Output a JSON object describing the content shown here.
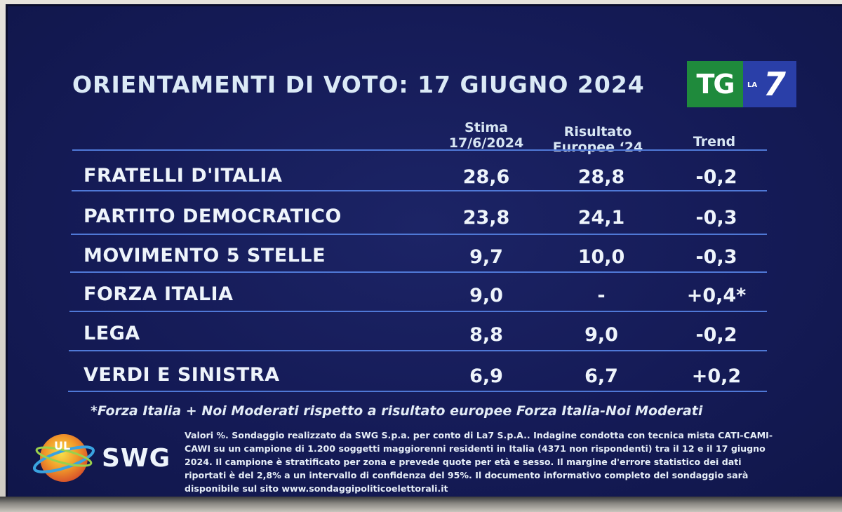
{
  "title": "ORIENTAMENTI DI VOTO: 17 GIUGNO 2024",
  "logo": {
    "left": "TG",
    "small": "LA",
    "right": "7"
  },
  "columns": {
    "estimate_line1": "Stima",
    "estimate_line2": "17/6/2024",
    "result_line1": "Risultato",
    "result_line2": "Europee ‘24",
    "trend": "Trend"
  },
  "rows": [
    {
      "party": "FRATELLI D'ITALIA",
      "estimate": "28,6",
      "result": "28,8",
      "trend": "-0,2"
    },
    {
      "party": "PARTITO DEMOCRATICO",
      "estimate": "23,8",
      "result": "24,1",
      "trend": "-0,3"
    },
    {
      "party": "MOVIMENTO 5 STELLE",
      "estimate": "9,7",
      "result": "10,0",
      "trend": "-0,3"
    },
    {
      "party": "FORZA ITALIA",
      "estimate": "9,0",
      "result": "-",
      "trend": "+0,4*"
    },
    {
      "party": "LEGA",
      "estimate": "8,8",
      "result": "9,0",
      "trend": "-0,2"
    },
    {
      "party": "VERDI E SINISTRA",
      "estimate": "6,9",
      "result": "6,7",
      "trend": "+0,2"
    }
  ],
  "footnote": "*Forza Italia + Noi Moderati rispetto a risultato europee Forza Italia-Noi Moderati",
  "swg": {
    "logo_letters": "UL",
    "name": "SWG"
  },
  "methodology": "Valori %. Sondaggio realizzato da SWG S.p.a. per conto di La7 S.p.A.. Indagine condotta con tecnica mista CATI-CAMI-CAWI su un campione di 1.200 soggetti maggiorenni residenti in Italia (4371 non rispondenti) tra il 12 e il 17 giugno 2024. Il campione è stratificato per zona e prevede quote per età e sesso. Il margine d'errore statistico dei dati riportati è del 2,8% a un intervallo di confidenza del 95%. Il documento informativo completo del sondaggio sarà disponibile sul sito www.sondaggipoliticoelettorali.it",
  "colors": {
    "background": "#151b57",
    "rule": "#4f78d6",
    "text": "#eef4fb",
    "tg_green": "#1f8a3c",
    "la7_blue": "#2a3fa8"
  },
  "chart_data": {
    "type": "table",
    "title": "ORIENTAMENTI DI VOTO: 17 GIUGNO 2024",
    "headers": [
      "Stima 17/6/2024",
      "Risultato Europee ‘24",
      "Trend"
    ],
    "categories": [
      "FRATELLI D'ITALIA",
      "PARTITO DEMOCRATICO",
      "MOVIMENTO 5 STELLE",
      "FORZA ITALIA",
      "LEGA",
      "VERDI E SINISTRA"
    ],
    "series": [
      {
        "name": "Stima 17/6/2024",
        "values": [
          28.6,
          23.8,
          9.7,
          9.0,
          8.8,
          6.9
        ]
      },
      {
        "name": "Risultato Europee ‘24",
        "values": [
          28.8,
          24.1,
          10.0,
          null,
          9.0,
          6.7
        ]
      },
      {
        "name": "Trend",
        "values": [
          -0.2,
          -0.3,
          -0.3,
          0.4,
          -0.2,
          0.2
        ]
      }
    ]
  }
}
